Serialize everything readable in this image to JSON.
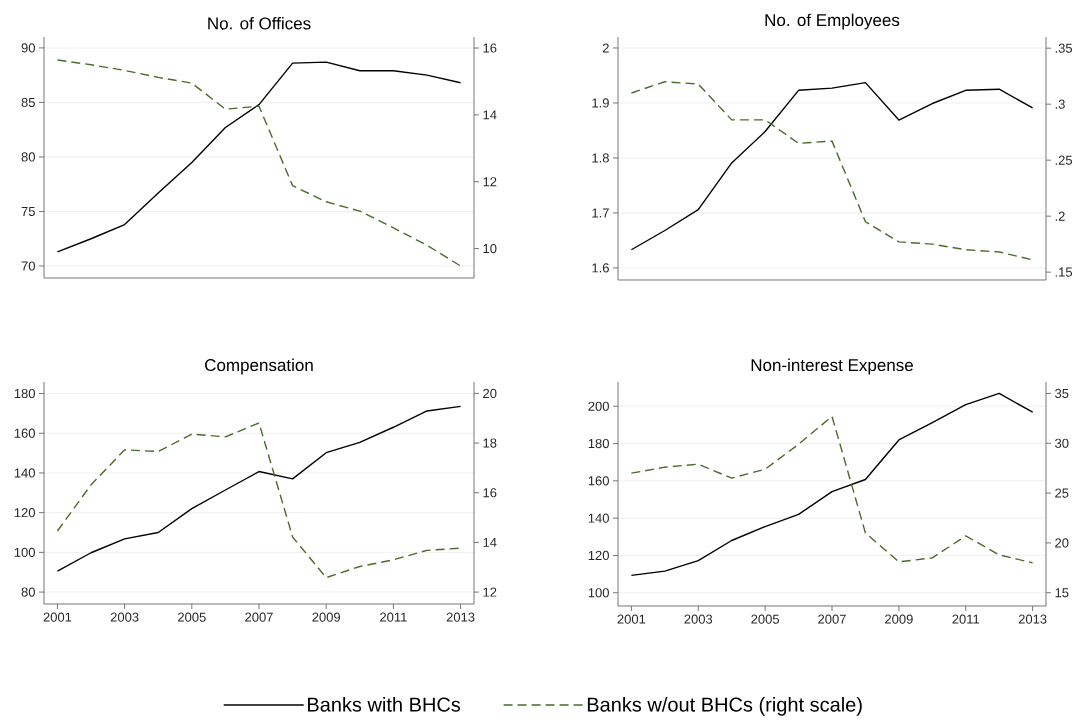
{
  "chart_data": [
    {
      "type": "line",
      "title": "No. of Offices",
      "x": [
        2001,
        2002,
        2003,
        2004,
        2005,
        2006,
        2007,
        2008,
        2009,
        2010,
        2011,
        2012,
        2013
      ],
      "xlim": [
        2000.6,
        2013.4
      ],
      "ylim": [
        68.9,
        91
      ],
      "yticks": [
        70,
        75,
        80,
        85,
        90
      ],
      "y2lim": [
        9.12,
        16.33
      ],
      "y2ticks": [
        10,
        12,
        14,
        16
      ],
      "grid": "y",
      "tick_labels": "y",
      "legend": "bottom",
      "series": [
        {
          "name": "Banks with BHCs",
          "color": "#000000",
          "line_style": "solid",
          "values": [
            71.3,
            72.5,
            73.8,
            76.7,
            79.5,
            82.7,
            84.8,
            88.6,
            88.7,
            87.9,
            87.9,
            87.5,
            86.8
          ]
        },
        {
          "name": "Banks w/out BHCs (right scale)",
          "color": "#4a6b2a",
          "line_style": "dashed",
          "axis": "y2",
          "values": [
            15.64,
            15.5,
            15.33,
            15.12,
            14.95,
            14.17,
            14.26,
            11.88,
            11.4,
            11.12,
            10.62,
            10.1,
            9.48
          ]
        }
      ]
    },
    {
      "type": "line",
      "title": "No. of Employees",
      "x": [
        2001,
        2002,
        2003,
        2004,
        2005,
        2006,
        2007,
        2008,
        2009,
        2010,
        2011,
        2012,
        2013
      ],
      "xlim": [
        2000.6,
        2013.4
      ],
      "ylim": [
        1.578,
        2.02
      ],
      "yticks": [
        1.6,
        1.7,
        1.8,
        1.9,
        2
      ],
      "y2lim": [
        0.143,
        0.36
      ],
      "y2ticks": [
        {
          "value": 0.15,
          "label": ".15"
        },
        {
          "value": 0.2,
          "label": ".2"
        },
        {
          "value": 0.25,
          "label": ".25"
        },
        {
          "value": 0.3,
          "label": ".3"
        },
        {
          "value": 0.35,
          "label": ".35"
        }
      ],
      "grid": "y",
      "tick_labels": "y",
      "series": [
        {
          "color": "#000000",
          "line_style": "solid",
          "values": [
            1.633,
            1.668,
            1.706,
            1.791,
            1.848,
            1.923,
            1.927,
            1.937,
            1.869,
            1.899,
            1.923,
            1.925,
            1.891
          ]
        },
        {
          "color": "#4a6b2a",
          "line_style": "dashed",
          "axis": "y2",
          "values": [
            0.31,
            0.32,
            0.318,
            0.286,
            0.286,
            0.265,
            0.267,
            0.195,
            0.177,
            0.175,
            0.17,
            0.168,
            0.161
          ]
        }
      ]
    },
    {
      "type": "line",
      "title": "Compensation",
      "x": [
        2001,
        2002,
        2003,
        2004,
        2005,
        2006,
        2007,
        2008,
        2009,
        2010,
        2011,
        2012,
        2013
      ],
      "xlim": [
        2000.6,
        2013.4
      ],
      "xticks": [
        2001,
        2003,
        2005,
        2007,
        2009,
        2011,
        2013
      ],
      "ylim": [
        74,
        185.8
      ],
      "yticks": [
        80,
        100,
        120,
        140,
        160,
        180
      ],
      "y2lim": [
        11.52,
        20.46
      ],
      "y2ticks": [
        12,
        14,
        16,
        18,
        20
      ],
      "grid": "y",
      "series": [
        {
          "color": "#000000",
          "line_style": "solid",
          "values": [
            90.5,
            99.8,
            106.8,
            110,
            122,
            131.4,
            140.7,
            137,
            150.2,
            155.4,
            163,
            171.2,
            173.5
          ]
        },
        {
          "color": "#4a6b2a",
          "line_style": "dashed",
          "axis": "y2",
          "values": [
            14.46,
            16.32,
            17.73,
            17.66,
            18.36,
            18.25,
            18.81,
            14.22,
            12.58,
            13.03,
            13.3,
            13.68,
            13.77
          ]
        }
      ]
    },
    {
      "type": "line",
      "title": "Non-interest Expense",
      "x": [
        2001,
        2002,
        2003,
        2004,
        2005,
        2006,
        2007,
        2008,
        2009,
        2010,
        2011,
        2012,
        2013
      ],
      "xlim": [
        2000.6,
        2013.4
      ],
      "xticks": [
        2001,
        2003,
        2005,
        2007,
        2009,
        2011,
        2013
      ],
      "ylim": [
        92.9,
        213
      ],
      "yticks": [
        100,
        120,
        140,
        160,
        180,
        200
      ],
      "y2lim": [
        13.67,
        36.15
      ],
      "y2ticks": [
        15,
        20,
        25,
        30,
        35
      ],
      "grid": "y",
      "series": [
        {
          "color": "#000000",
          "line_style": "solid",
          "values": [
            109.3,
            111.6,
            117.2,
            128,
            135.5,
            142,
            154.2,
            160.7,
            181.9,
            191.2,
            200.9,
            206.9,
            196.8
          ]
        },
        {
          "color": "#4a6b2a",
          "line_style": "dashed",
          "axis": "y2",
          "values": [
            27.0,
            27.6,
            27.9,
            26.5,
            27.4,
            29.9,
            32.7,
            21.0,
            18.1,
            18.5,
            20.7,
            18.8,
            18.0
          ]
        }
      ]
    }
  ]
}
